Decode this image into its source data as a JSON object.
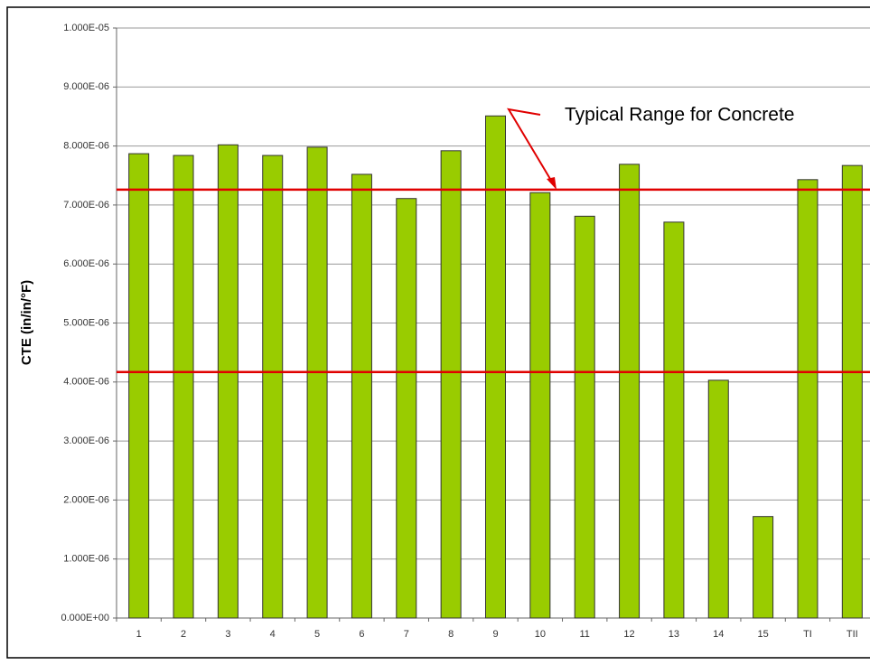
{
  "chart_data": {
    "type": "bar",
    "y_label": "CTE (in/in/°F)",
    "annotation": "Typical Range for Concrete",
    "categories": [
      "1",
      "2",
      "3",
      "4",
      "5",
      "6",
      "7",
      "8",
      "9",
      "10",
      "11",
      "12",
      "13",
      "14",
      "15",
      "TI",
      "TII"
    ],
    "values": [
      7.87e-06,
      7.84e-06,
      8.02e-06,
      7.84e-06,
      7.98e-06,
      7.52e-06,
      7.11e-06,
      7.92e-06,
      8.51e-06,
      7.21e-06,
      6.81e-06,
      7.69e-06,
      6.71e-06,
      4.03e-06,
      1.72e-06,
      7.43e-06,
      7.67e-06
    ],
    "color": "#99cc00",
    "reference_lines": [
      {
        "value": 7.26e-06,
        "color": "#e00000"
      },
      {
        "value": 4.17e-06,
        "color": "#e00000"
      }
    ],
    "ylim": [
      0,
      1e-05
    ],
    "yticks": [
      {
        "value": 0,
        "label": "0.000E+00"
      },
      {
        "value": 1e-06,
        "label": "1.000E-06"
      },
      {
        "value": 2e-06,
        "label": "2.000E-06"
      },
      {
        "value": 3e-06,
        "label": "3.000E-06"
      },
      {
        "value": 4e-06,
        "label": "4.000E-06"
      },
      {
        "value": 5e-06,
        "label": "5.000E-06"
      },
      {
        "value": 6e-06,
        "label": "6.000E-06"
      },
      {
        "value": 7e-06,
        "label": "7.000E-06"
      },
      {
        "value": 8e-06,
        "label": "8.000E-06"
      },
      {
        "value": 9e-06,
        "label": "9.000E-06"
      },
      {
        "value": 1e-05,
        "label": "1.000E-05"
      }
    ],
    "grid": true
  }
}
